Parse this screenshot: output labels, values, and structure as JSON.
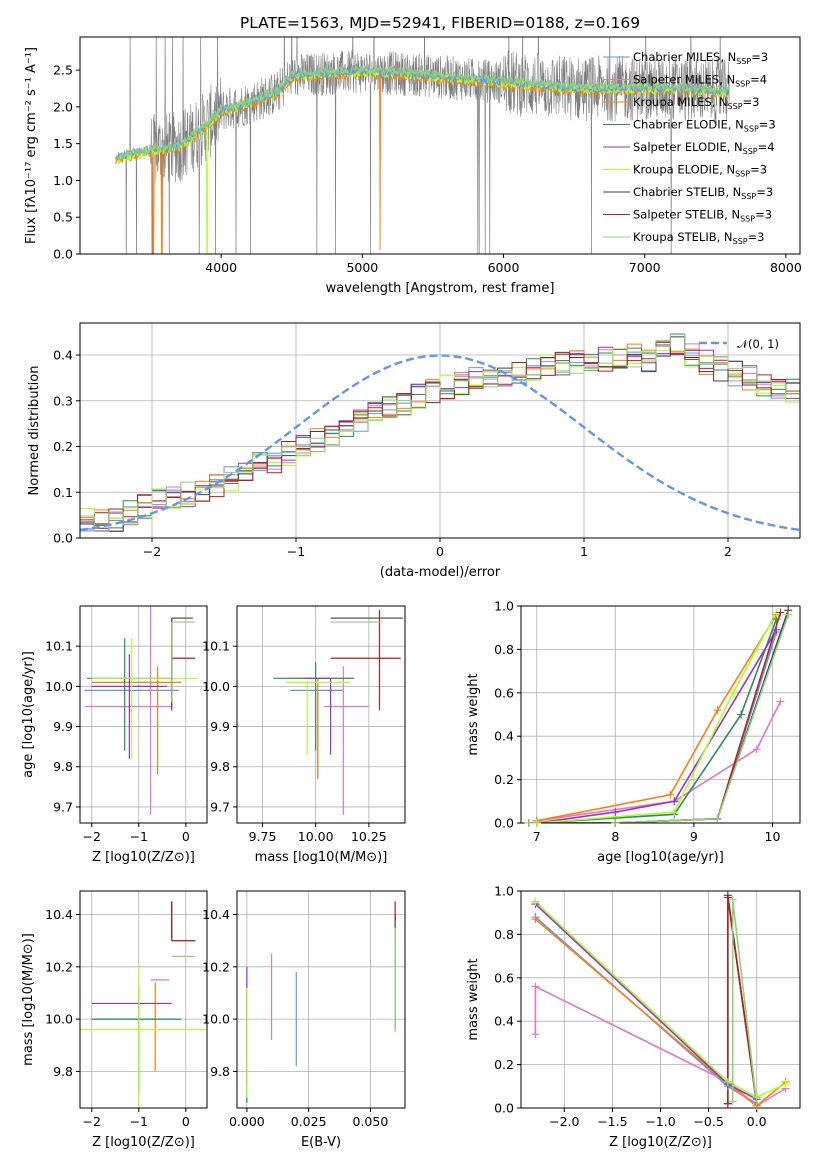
{
  "figure_title": "PLATE=1563, MJD=52941, FIBERID=0188, z=0.169",
  "colors": {
    "data": "#808080",
    "series": [
      "#6495ed",
      "#e377c2",
      "#ff7f0e",
      "#2e8b57",
      "#9932cc",
      "#adff2f",
      "#404040",
      "#b22222",
      "#8fd17c"
    ],
    "gaussian": "#6495ed",
    "grid": "#b0b0b0"
  },
  "chart_data": [
    {
      "id": "spectrum",
      "type": "line",
      "xlabel": "wavelength [Angstrom, rest frame]",
      "ylabel": "Flux [fλ10⁻¹⁷ erg cm⁻² s⁻¹ A⁻¹]",
      "xlim": [
        3000,
        8100
      ],
      "ylim": [
        0,
        2.95
      ],
      "xticks": [
        4000,
        5000,
        6000,
        7000,
        8000
      ],
      "yticks": [
        0.0,
        0.5,
        1.0,
        1.5,
        2.0,
        2.5
      ],
      "grid": false,
      "legend_position": "top-right",
      "legend": [
        "Chabrier MILES, N_SSP=3",
        "Salpeter MILES, N_SSP=4",
        "Kroupa MILES, N_SSP=3",
        "Chabrier ELODIE, N_SSP=3",
        "Salpeter ELODIE, N_SSP=4",
        "Kroupa ELODIE, N_SSP=3",
        "Chabrier STELIB, N_SSP=3",
        "Salpeter STELIB, N_SSP=3",
        "Kroupa STELIB, N_SSP=3"
      ],
      "continuum": [
        [
          3250,
          1.3
        ],
        [
          3400,
          1.37
        ],
        [
          3550,
          1.42
        ],
        [
          3700,
          1.45
        ],
        [
          3800,
          1.6
        ],
        [
          3900,
          1.75
        ],
        [
          4000,
          1.95
        ],
        [
          4200,
          2.05
        ],
        [
          4400,
          2.2
        ],
        [
          4500,
          2.42
        ],
        [
          4700,
          2.45
        ],
        [
          5000,
          2.48
        ],
        [
          5300,
          2.45
        ],
        [
          5600,
          2.4
        ],
        [
          5900,
          2.35
        ],
        [
          6200,
          2.3
        ],
        [
          6500,
          2.25
        ],
        [
          6800,
          2.25
        ],
        [
          7100,
          2.25
        ],
        [
          7400,
          2.23
        ],
        [
          7600,
          2.2
        ]
      ]
    },
    {
      "id": "residuals",
      "type": "step",
      "xlabel": "(data-model)/error",
      "ylabel": "Normed distribution",
      "xlim": [
        -2.5,
        2.5
      ],
      "ylim": [
        0,
        0.47
      ],
      "xticks": [
        -2,
        -1,
        0,
        1,
        2
      ],
      "yticks": [
        0.0,
        0.1,
        0.2,
        0.3,
        0.4
      ],
      "grid": true,
      "legend_position": "top-right",
      "legend": [
        "𝒩(0, 1)"
      ],
      "bin_width": 0.1,
      "bins_start": -2.5,
      "base_hist": [
        0.04,
        0.035,
        0.04,
        0.055,
        0.07,
        0.08,
        0.085,
        0.095,
        0.1,
        0.115,
        0.13,
        0.15,
        0.16,
        0.17,
        0.185,
        0.2,
        0.215,
        0.23,
        0.245,
        0.26,
        0.27,
        0.285,
        0.295,
        0.31,
        0.32,
        0.33,
        0.335,
        0.345,
        0.35,
        0.355,
        0.36,
        0.37,
        0.375,
        0.38,
        0.385,
        0.385,
        0.39,
        0.395,
        0.4,
        0.39,
        0.41,
        0.42,
        0.4,
        0.385,
        0.37,
        0.36,
        0.35,
        0.335,
        0.33,
        0.32,
        0.31,
        0.295,
        0.28,
        0.27,
        0.26,
        0.245,
        0.23,
        0.22,
        0.205,
        0.19,
        0.18,
        0.17,
        0.155,
        0.145,
        0.135,
        0.125,
        0.11,
        0.1,
        0.09,
        0.08,
        0.075,
        0.065,
        0.06,
        0.055,
        0.05,
        0.045,
        0.04,
        0.035,
        0.035,
        0.03
      ]
    },
    {
      "id": "z-vs-age",
      "type": "errorbar",
      "xlabel": "Z [log10(Z/Z⊙)]",
      "ylabel": "age  [log10(age/yr)]",
      "xlim": [
        -2.25,
        0.45
      ],
      "ylim": [
        9.66,
        10.2
      ],
      "xticks": [
        -2,
        -1,
        0
      ],
      "yticks": [
        9.7,
        9.8,
        9.9,
        10.0,
        10.1
      ],
      "grid": true,
      "points": [
        {
          "x": -0.55,
          "y": 9.99,
          "xerr": [
            1.6,
            0.4
          ],
          "yerr": [
            0.0,
            0.0
          ]
        },
        {
          "x": -0.75,
          "y": 9.95,
          "xerr": [
            1.4,
            0.45
          ],
          "yerr": [
            0.27,
            0.27
          ]
        },
        {
          "x": -0.6,
          "y": 10.01,
          "xerr": [
            1.4,
            0.5
          ],
          "yerr": [
            0.23,
            0.04
          ]
        },
        {
          "x": -1.3,
          "y": 10.02,
          "xerr": [
            0.8,
            1.0
          ],
          "yerr": [
            0.18,
            0.1
          ]
        },
        {
          "x": -1.2,
          "y": 10.0,
          "xerr": [
            0.8,
            0.8
          ],
          "yerr": [
            0.18,
            0.08
          ]
        },
        {
          "x": -1.15,
          "y": 10.02,
          "xerr": [
            0.85,
            1.4
          ],
          "yerr": [
            0.2,
            0.1
          ]
        },
        {
          "x": -0.3,
          "y": 10.17,
          "xerr": [
            0.0,
            0.45
          ],
          "yerr": [
            0.22,
            0.0
          ]
        },
        {
          "x": -0.3,
          "y": 10.07,
          "xerr": [
            0.0,
            0.5
          ],
          "yerr": [
            0.13,
            0.1
          ]
        },
        {
          "x": -0.3,
          "y": 10.16,
          "xerr": [
            0.0,
            0.5
          ],
          "yerr": [
            0.2,
            0.0
          ]
        }
      ]
    },
    {
      "id": "mass-vs-age",
      "type": "errorbar",
      "xlabel": "mass [log10(M/M⊙)]",
      "ylabel": "",
      "xlim": [
        9.63,
        10.42
      ],
      "ylim": [
        9.66,
        10.2
      ],
      "xticks": [
        9.75,
        10.0,
        10.25
      ],
      "xticklabels": [
        "9.75",
        "10.00",
        "10.25"
      ],
      "yticks": [
        9.7,
        9.8,
        9.9,
        10.0,
        10.1
      ],
      "grid": true,
      "points": [
        {
          "x": 10.01,
          "y": 9.99,
          "xerr": [
            0.13,
            0.12
          ],
          "yerr": [
            0.22,
            0.0
          ]
        },
        {
          "x": 10.13,
          "y": 9.95,
          "xerr": [
            0.09,
            0.12
          ],
          "yerr": [
            0.27,
            0.1
          ]
        },
        {
          "x": 10.01,
          "y": 10.02,
          "xerr": [
            0.14,
            0.17
          ],
          "yerr": [
            0.25,
            0.0
          ]
        },
        {
          "x": 10.0,
          "y": 10.02,
          "xerr": [
            0.2,
            0.18
          ],
          "yerr": [
            0.18,
            0.04
          ]
        },
        {
          "x": 10.07,
          "y": 10.02,
          "xerr": [
            0.12,
            0.0
          ],
          "yerr": [
            0.19,
            0.0
          ]
        },
        {
          "x": 9.96,
          "y": 10.01,
          "xerr": [
            0.1,
            0.2
          ],
          "yerr": [
            0.18,
            0.0
          ]
        },
        {
          "x": 10.24,
          "y": 10.17,
          "xerr": [
            0.17,
            0.17
          ],
          "yerr": [
            0.0,
            0.0
          ]
        },
        {
          "x": 10.3,
          "y": 10.07,
          "xerr": [
            0.23,
            0.1
          ],
          "yerr": [
            0.13,
            0.12
          ]
        },
        {
          "x": 10.23,
          "y": 10.16,
          "xerr": [
            0.16,
            0.08
          ],
          "yerr": [
            0.0,
            0.0
          ]
        }
      ]
    },
    {
      "id": "age-massweight",
      "type": "line",
      "xlabel": "age  [log10(age/yr)]",
      "ylabel": "mass weight",
      "xlim": [
        6.8,
        10.35
      ],
      "ylim": [
        0,
        1.0
      ],
      "xticks": [
        7,
        8,
        9,
        10
      ],
      "yticks": [
        0.0,
        0.2,
        0.4,
        0.6,
        0.8,
        1.0
      ],
      "grid": true,
      "series": [
        {
          "x": [
            6.9,
            8.0,
            9.3,
            10.05
          ],
          "y": [
            0.0,
            0.0,
            0.02,
            0.88
          ]
        },
        {
          "x": [
            7.0,
            8.75,
            9.8,
            10.1
          ],
          "y": [
            0.01,
            0.1,
            0.34,
            0.56
          ]
        },
        {
          "x": [
            7.0,
            8.7,
            9.3,
            10.05
          ],
          "y": [
            0.01,
            0.13,
            0.52,
            0.96
          ]
        },
        {
          "x": [
            7.0,
            8.75,
            9.6,
            10.05
          ],
          "y": [
            0.0,
            0.04,
            0.5,
            0.94
          ]
        },
        {
          "x": [
            7.0,
            8.0,
            8.75,
            10.05
          ],
          "y": [
            0.0,
            0.05,
            0.1,
            0.89
          ]
        },
        {
          "x": [
            7.0,
            8.75,
            9.5,
            10.05
          ],
          "y": [
            0.0,
            0.05,
            0.6,
            0.97
          ]
        },
        {
          "x": [
            6.9,
            8.0,
            9.3,
            10.2
          ],
          "y": [
            0.0,
            0.0,
            0.02,
            0.98
          ]
        },
        {
          "x": [
            6.9,
            8.0,
            9.3,
            10.1
          ],
          "y": [
            0.0,
            0.0,
            0.02,
            0.97
          ]
        },
        {
          "x": [
            6.9,
            8.0,
            9.3,
            10.2
          ],
          "y": [
            0.0,
            0.0,
            0.02,
            0.96
          ]
        }
      ]
    },
    {
      "id": "z-vs-mass",
      "type": "errorbar",
      "xlabel": "Z [log10(Z/Z⊙)]",
      "ylabel": "mass [log10(M/M⊙)]",
      "xlim": [
        -2.25,
        0.45
      ],
      "ylim": [
        9.66,
        10.49
      ],
      "xticks": [
        -2,
        -1,
        0
      ],
      "yticks": [
        9.8,
        10.0,
        10.2,
        10.4
      ],
      "grid": true,
      "points": [
        {
          "x": -1.0,
          "y": 10.0,
          "xerr": [
            1.0,
            0.9
          ],
          "yerr": [
            0.0,
            0.0
          ]
        },
        {
          "x": -0.35,
          "y": 10.15,
          "xerr": [
            0.4,
            0.0
          ],
          "yerr": [
            0.0,
            0.0
          ]
        },
        {
          "x": -0.65,
          "y": 10.0,
          "xerr": [
            0.0,
            0.0
          ],
          "yerr": [
            0.2,
            0.14
          ]
        },
        {
          "x": -1.0,
          "y": 10.0,
          "xerr": [
            1.0,
            0.9
          ],
          "yerr": [
            0.28,
            0.12
          ]
        },
        {
          "x": -1.0,
          "y": 10.06,
          "xerr": [
            1.0,
            0.7
          ],
          "yerr": [
            0.0,
            0.0
          ]
        },
        {
          "x": -1.0,
          "y": 9.96,
          "xerr": [
            1.25,
            1.45
          ],
          "yerr": [
            0.3,
            0.25
          ]
        },
        {
          "x": -0.3,
          "y": 10.3,
          "xerr": [
            0.0,
            0.5
          ],
          "yerr": [
            0.0,
            0.15
          ]
        },
        {
          "x": -0.3,
          "y": 10.3,
          "xerr": [
            0.0,
            0.5
          ],
          "yerr": [
            0.0,
            0.15
          ]
        },
        {
          "x": -0.3,
          "y": 10.24,
          "xerr": [
            0.0,
            0.5
          ],
          "yerr": [
            0.0,
            0.0
          ]
        }
      ]
    },
    {
      "id": "ebv-vs-mass",
      "type": "errorbar",
      "xlabel": "E(B-V)",
      "ylabel": "",
      "xlim": [
        -0.004,
        0.064
      ],
      "ylim": [
        9.66,
        10.49
      ],
      "xticks": [
        0.0,
        0.025,
        0.05
      ],
      "xticklabels": [
        "0.000",
        "0.025",
        "0.050"
      ],
      "yticks": [
        9.8,
        10.0,
        10.2,
        10.4
      ],
      "grid": true,
      "points": [
        {
          "x": 0.02,
          "y": 10.0,
          "xerr": [
            0,
            0
          ],
          "yerr": [
            0.18,
            0.18
          ]
        },
        {
          "x": 0.01,
          "y": 10.08,
          "xerr": [
            0,
            0
          ],
          "yerr": [
            0.16,
            0.17
          ]
        },
        {
          "x": 0.06,
          "y": 10.4,
          "xerr": [
            0,
            0
          ],
          "yerr": [
            0.02,
            0.02
          ]
        },
        {
          "x": 0.0,
          "y": 10.0,
          "xerr": [
            0,
            0
          ],
          "yerr": [
            0.32,
            0.12
          ]
        },
        {
          "x": 0.0,
          "y": 10.0,
          "xerr": [
            0,
            0
          ],
          "yerr": [
            0.25,
            0.2
          ]
        },
        {
          "x": 0.0,
          "y": 9.9,
          "xerr": [
            0,
            0
          ],
          "yerr": [
            0.2,
            0.22
          ]
        },
        {
          "x": 0.06,
          "y": 10.2,
          "xerr": [
            0,
            0
          ],
          "yerr": [
            0.24,
            0.2
          ]
        },
        {
          "x": 0.06,
          "y": 10.4,
          "xerr": [
            0,
            0
          ],
          "yerr": [
            0.02,
            0.05
          ]
        },
        {
          "x": 0.06,
          "y": 10.15,
          "xerr": [
            0,
            0
          ],
          "yerr": [
            0.2,
            0.2
          ]
        }
      ]
    },
    {
      "id": "z-massweight",
      "type": "line",
      "xlabel": "Z [log10(Z/Z⊙)]",
      "ylabel": "mass weight",
      "xlim": [
        -2.45,
        0.45
      ],
      "ylim": [
        0,
        1.0
      ],
      "xticks": [
        -2.0,
        -1.5,
        -1.0,
        -0.5,
        0.0
      ],
      "xticklabels": [
        "−2.0",
        "−1.5",
        "−1.0",
        "−0.5",
        "0.0"
      ],
      "yticks": [
        0.0,
        0.2,
        0.4,
        0.6,
        0.8,
        1.0
      ],
      "grid": true,
      "series": [
        {
          "x": [
            -2.3,
            -0.3,
            0.0
          ],
          "y": [
            0.88,
            0.1,
            0.02
          ]
        },
        {
          "x": [
            -2.3,
            -2.3,
            -0.3,
            0.0,
            0.3
          ],
          "y": [
            0.34,
            0.56,
            0.12,
            0.01,
            0.09
          ]
        },
        {
          "x": [
            -2.3,
            -0.3,
            0.0,
            0.3
          ],
          "y": [
            0.87,
            0.11,
            0.01,
            0.12
          ]
        },
        {
          "x": [
            -2.3,
            -0.3,
            0.0
          ],
          "y": [
            0.95,
            0.12,
            0.05
          ]
        },
        {
          "x": [
            -2.3,
            -0.3,
            0.0
          ],
          "y": [
            0.94,
            0.11,
            0.04
          ]
        },
        {
          "x": [
            -2.3,
            -0.3,
            0.0,
            0.3
          ],
          "y": [
            0.95,
            0.12,
            0.05,
            0.11
          ]
        },
        {
          "x": [
            -0.3,
            -0.3,
            0.0
          ],
          "y": [
            0.02,
            0.98,
            0.02
          ]
        },
        {
          "x": [
            -0.3,
            -0.3,
            0.0
          ],
          "y": [
            0.02,
            0.97,
            0.02
          ]
        },
        {
          "x": [
            -0.25,
            -0.25,
            0.0
          ],
          "y": [
            0.03,
            0.96,
            0.02
          ]
        }
      ]
    }
  ]
}
